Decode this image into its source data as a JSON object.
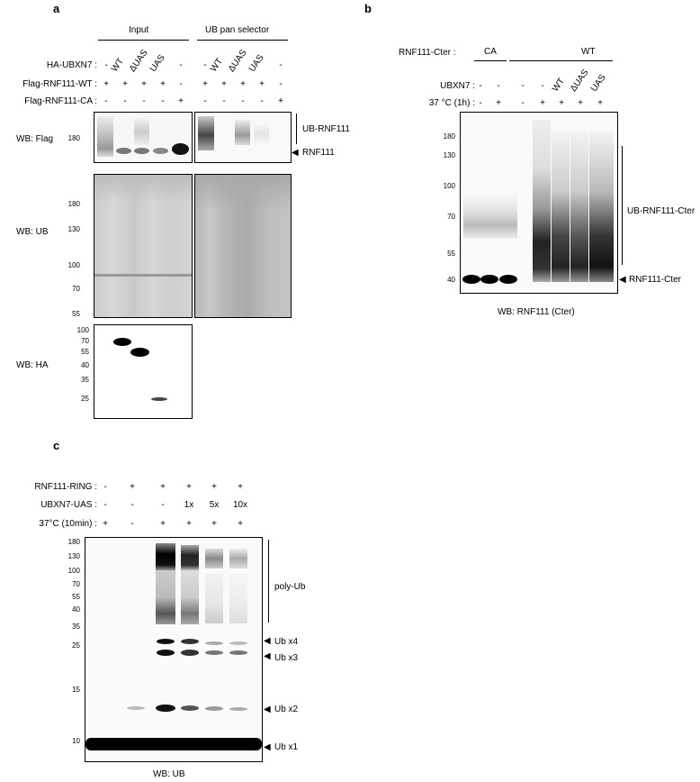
{
  "panels": {
    "a": {
      "letter": "a",
      "group_labels": [
        "Input",
        "UB pan selector"
      ],
      "row_labels": [
        "HA-UBXN7 :",
        "Flag-RNF111-WT :",
        "Flag-RNF111-CA :"
      ],
      "ha_ubxn7_row": [
        "-",
        "WT",
        "ΔUAS",
        "UAS",
        "-",
        "-",
        "WT",
        "ΔUAS",
        "UAS",
        "-"
      ],
      "flag_wt_row": [
        "+",
        "+",
        "+",
        "+",
        "-",
        "+",
        "+",
        "+",
        "+",
        "-"
      ],
      "flag_ca_row": [
        "-",
        "-",
        "-",
        "-",
        "+",
        "-",
        "-",
        "-",
        "-",
        "+"
      ],
      "wb_labels": [
        "WB: Flag",
        "WB: UB",
        "WB: HA"
      ],
      "flag_markers": [
        "180"
      ],
      "ub_markers": [
        "180",
        "130",
        "100",
        "70",
        "55"
      ],
      "ha_markers": [
        "100",
        "70",
        "55",
        "40",
        "35",
        "25"
      ],
      "annotations": [
        "UB-RNF111",
        "RNF111"
      ]
    },
    "b": {
      "letter": "b",
      "row_labels": [
        "RNF111-Cter :",
        "UBXN7 :",
        "37 °C (1h) :"
      ],
      "group_labels": [
        "CA",
        "WT"
      ],
      "ubxn7_row": [
        "-",
        "-",
        "-",
        "-",
        "WT",
        "ΔUAS",
        "UAS"
      ],
      "temp_row": [
        "-",
        "+",
        "-",
        "+",
        "+",
        "+",
        "+"
      ],
      "markers": [
        "180",
        "130",
        "100",
        "70",
        "55",
        "40"
      ],
      "annotations": [
        "UB-RNF111-Cter",
        "RNF111-Cter"
      ],
      "wb_label": "WB: RNF111 (Cter)"
    },
    "c": {
      "letter": "c",
      "row_labels": [
        "RNF111-RING :",
        "UBXN7-UAS :",
        "37°C (10min) :"
      ],
      "ring_row": [
        "-",
        "+",
        "+",
        "+",
        "+",
        "+"
      ],
      "uas_row": [
        "-",
        "-",
        "-",
        "1x",
        "5x",
        "10x"
      ],
      "temp_row": [
        "+",
        "-",
        "+",
        "+",
        "+",
        "+"
      ],
      "markers": [
        "180",
        "130",
        "100",
        "70",
        "55",
        "40",
        "35",
        "25",
        "15",
        "10"
      ],
      "annotations": [
        "poly-Ub",
        "Ub x4",
        "Ub x3",
        "Ub x2",
        "Ub x1"
      ],
      "wb_label": "WB: UB"
    }
  }
}
